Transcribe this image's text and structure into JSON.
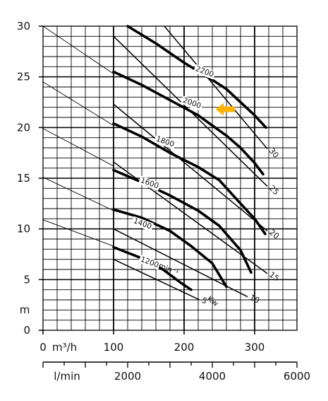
{
  "chart_data": {
    "type": "line",
    "xlabel": "m³/h",
    "x2label": "l/min",
    "ylabel": "m",
    "xlim": [
      0,
      360
    ],
    "ylim": [
      0,
      30
    ],
    "xticks": [
      0,
      100,
      200,
      300
    ],
    "x2ticks": [
      {
        "value": 2000,
        "label": "2000"
      },
      {
        "value": 4000,
        "label": "4000"
      },
      {
        "value": 6000,
        "label": "6000"
      }
    ],
    "yticks": [
      0,
      5,
      10,
      15,
      20,
      25,
      30
    ],
    "grid": true,
    "speed_unit": "min⁻¹",
    "power_unit": "Kw",
    "series": [
      {
        "name": "2200",
        "points": [
          [
            120,
            30
          ],
          [
            160,
            28.3
          ],
          [
            200,
            26.4
          ],
          [
            240,
            24.7
          ],
          [
            260,
            23.8
          ],
          [
            280,
            22.5
          ],
          [
            300,
            21.2
          ],
          [
            316,
            20
          ]
        ]
      },
      {
        "name": "2000",
        "points": [
          [
            100,
            25.5
          ],
          [
            140,
            24.2
          ],
          [
            180,
            22.7
          ],
          [
            220,
            21.2
          ],
          [
            260,
            19.2
          ],
          [
            280,
            18
          ],
          [
            300,
            16.5
          ],
          [
            312,
            15.4
          ]
        ]
      },
      {
        "name": "1800",
        "points": [
          [
            100,
            20.4
          ],
          [
            140,
            19.1
          ],
          [
            180,
            17.5
          ],
          [
            220,
            16.1
          ],
          [
            250,
            14.8
          ],
          [
            280,
            12.5
          ],
          [
            300,
            11
          ],
          [
            315,
            9.5
          ]
        ]
      },
      {
        "name": "1600",
        "points": [
          [
            100,
            15.8
          ],
          [
            140,
            14.6
          ],
          [
            180,
            13.3
          ],
          [
            220,
            11.8
          ],
          [
            250,
            10.3
          ],
          [
            280,
            7.9
          ],
          [
            295,
            5.7
          ]
        ]
      },
      {
        "name": "1400",
        "points": [
          [
            100,
            11.9
          ],
          [
            140,
            11.1
          ],
          [
            180,
            9.8
          ],
          [
            210,
            8.3
          ],
          [
            240,
            6.6
          ],
          [
            260,
            4.3
          ]
        ]
      },
      {
        "name": "1200",
        "points": [
          [
            100,
            8.2
          ],
          [
            140,
            7.1
          ],
          [
            170,
            6
          ],
          [
            195,
            4.7
          ],
          [
            210,
            4
          ]
        ]
      }
    ],
    "system_curves": [
      [
        [
          0,
          30
        ],
        [
          100,
          25.3
        ]
      ],
      [
        [
          0,
          24.5
        ],
        [
          100,
          20.2
        ]
      ],
      [
        [
          0,
          19.9
        ],
        [
          100,
          16.2
        ]
      ],
      [
        [
          0,
          15.1
        ],
        [
          100,
          11.8
        ]
      ],
      [
        [
          0,
          10.9
        ],
        [
          100,
          8.3
        ]
      ]
    ],
    "power_lines": [
      {
        "label": "30",
        "start": [
          172,
          30
        ],
        "end": [
          318,
          17.9
        ]
      },
      {
        "label": "25",
        "start": [
          100,
          29
        ],
        "end": [
          318,
          14.2
        ]
      },
      {
        "label": "20",
        "start": [
          100,
          22.3
        ],
        "end": [
          318,
          9.8
        ]
      },
      {
        "label": "15",
        "start": [
          100,
          16.6
        ],
        "end": [
          318,
          5.6
        ]
      },
      {
        "label": "10",
        "start": [
          100,
          10
        ],
        "end": [
          290,
          3.3
        ]
      },
      {
        "label": "5",
        "start": [
          100,
          7
        ],
        "end": [
          222,
          3
        ]
      }
    ],
    "annotations": [
      {
        "type": "arrow",
        "color": "#FFB300",
        "points_to": "2000",
        "at": [
          245,
          21.8
        ]
      }
    ]
  }
}
